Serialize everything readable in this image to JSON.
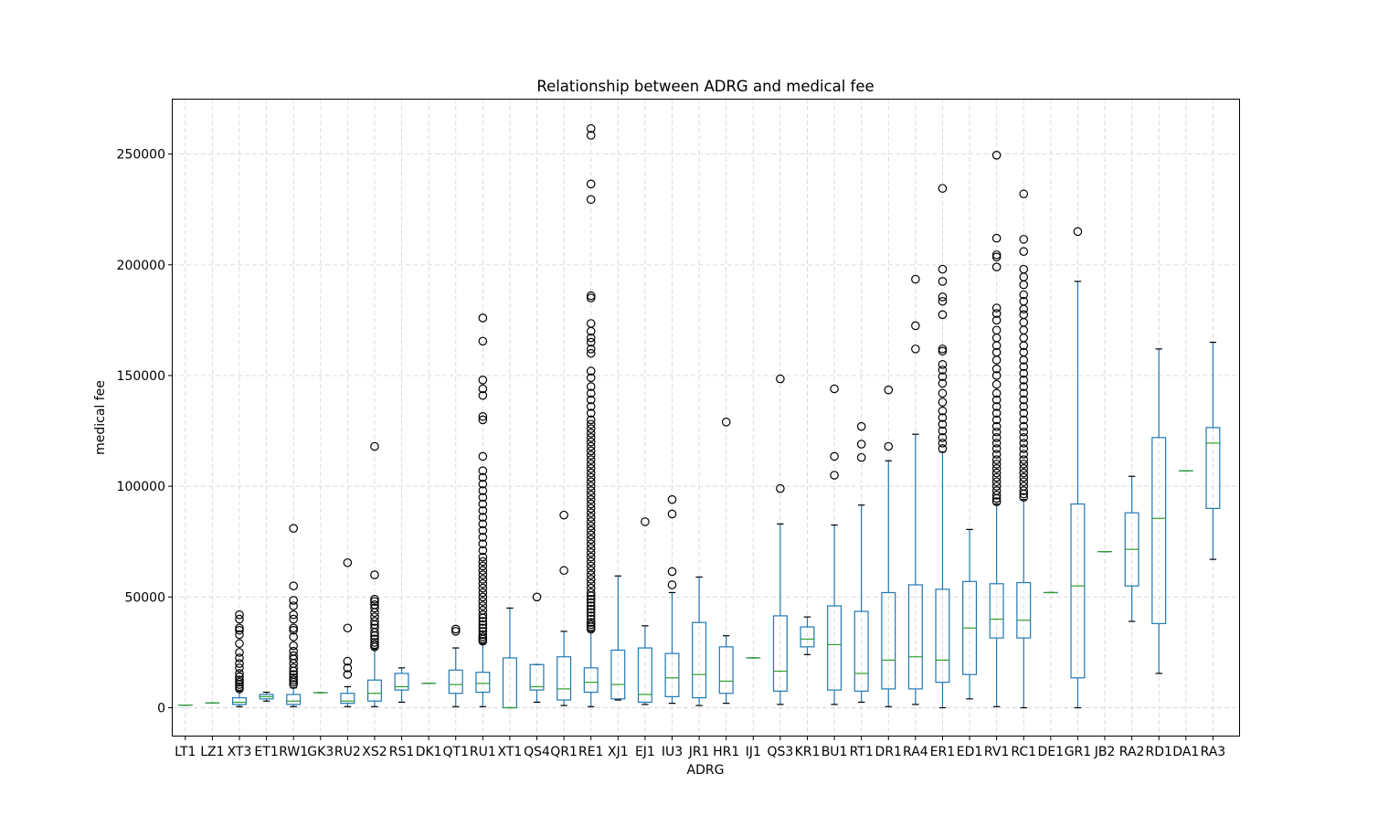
{
  "chart_data": {
    "type": "boxplot",
    "title": "Relationship between ADRG and medical fee",
    "xlabel": "ADRG",
    "ylabel": "medical fee",
    "ylim": [
      -13000,
      275000
    ],
    "yticks": [
      0,
      50000,
      100000,
      150000,
      200000,
      250000
    ],
    "grid": true,
    "colors": {
      "box": "#1f77b4",
      "median": "#2ca02c",
      "whisker_cap": "#000000",
      "flier": "#000000",
      "grid": "#d9d9d9"
    },
    "categories": [
      "LT1",
      "LZ1",
      "XT3",
      "ET1",
      "RW1",
      "GK3",
      "RU2",
      "XS2",
      "RS1",
      "DK1",
      "QT1",
      "RU1",
      "XT1",
      "QS4",
      "QR1",
      "RE1",
      "XJ1",
      "EJ1",
      "IU3",
      "JR1",
      "HR1",
      "IJ1",
      "QS3",
      "KR1",
      "BU1",
      "RT1",
      "DR1",
      "RA4",
      "ER1",
      "ED1",
      "RV1",
      "RC1",
      "DE1",
      "GR1",
      "JB2",
      "RA2",
      "RD1",
      "DA1",
      "RA3"
    ],
    "boxes": [
      {
        "label": "LT1",
        "whislo": 1200,
        "q1": 1200,
        "med": 1200,
        "q3": 1200,
        "whishi": 1200,
        "fliers": []
      },
      {
        "label": "LZ1",
        "whislo": 2200,
        "q1": 2200,
        "med": 2200,
        "q3": 2200,
        "whishi": 2200,
        "fliers": []
      },
      {
        "label": "XT3",
        "whislo": 500,
        "q1": 1500,
        "med": 2500,
        "q3": 4500,
        "whishi": 7500,
        "fliers": [
          8500,
          9500,
          10500,
          11500,
          12500,
          14000,
          15500,
          18000,
          20000,
          22500,
          25000,
          29000,
          33000,
          35000,
          36000,
          40000,
          42000
        ]
      },
      {
        "label": "ET1",
        "whislo": 3000,
        "q1": 4000,
        "med": 5000,
        "q3": 6000,
        "whishi": 7000,
        "fliers": []
      },
      {
        "label": "RW1",
        "whislo": 500,
        "q1": 1500,
        "med": 3000,
        "q3": 6000,
        "whishi": 9000,
        "fliers": [
          10500,
          11500,
          12500,
          13500,
          15000,
          16500,
          18000,
          20000,
          22000,
          23500,
          25500,
          28000,
          32000,
          35000,
          36000,
          40000,
          42000,
          46000,
          48500,
          55000,
          81000
        ]
      },
      {
        "label": "GK3",
        "whislo": 6800,
        "q1": 6800,
        "med": 6800,
        "q3": 6800,
        "whishi": 6800,
        "fliers": []
      },
      {
        "label": "RU2",
        "whislo": 500,
        "q1": 2000,
        "med": 3000,
        "q3": 6500,
        "whishi": 9500,
        "fliers": [
          15000,
          18000,
          21000,
          36000,
          65500
        ]
      },
      {
        "label": "XS2",
        "whislo": 500,
        "q1": 3000,
        "med": 6500,
        "q3": 12500,
        "whishi": 26500,
        "fliers": [
          27500,
          28500,
          29500,
          31000,
          32500,
          34000,
          36000,
          37500,
          39000,
          41000,
          43000,
          45000,
          46500,
          48000,
          49000,
          60000,
          118000
        ]
      },
      {
        "label": "RS1",
        "whislo": 2500,
        "q1": 8000,
        "med": 9500,
        "q3": 15500,
        "whishi": 18000,
        "fliers": []
      },
      {
        "label": "DK1",
        "whislo": 11000,
        "q1": 11000,
        "med": 11000,
        "q3": 11000,
        "whishi": 11000,
        "fliers": []
      },
      {
        "label": "QT1",
        "whislo": 500,
        "q1": 6500,
        "med": 10500,
        "q3": 17000,
        "whishi": 27000,
        "fliers": [
          34500,
          35500
        ]
      },
      {
        "label": "RU1",
        "whislo": 500,
        "q1": 7000,
        "med": 11000,
        "q3": 16000,
        "whishi": 29000,
        "fliers": [
          30000,
          31000,
          32000,
          33000,
          34500,
          36000,
          37500,
          39000,
          40500,
          42000,
          44000,
          46000,
          48000,
          50000,
          52000,
          54000,
          56000,
          58000,
          60000,
          62000,
          64000,
          66000,
          68000,
          71000,
          74000,
          77000,
          80000,
          83000,
          86000,
          89000,
          92000,
          95000,
          98000,
          101000,
          104000,
          107000,
          113500,
          130000,
          131500,
          141000,
          144000,
          148000,
          165500,
          176000
        ]
      },
      {
        "label": "XT1",
        "whislo": 0,
        "q1": 0,
        "med": 0,
        "q3": 22500,
        "whishi": 45000,
        "fliers": []
      },
      {
        "label": "QS4",
        "whislo": 2500,
        "q1": 8000,
        "med": 9500,
        "q3": 19500,
        "whishi": 19500,
        "fliers": [
          50000
        ]
      },
      {
        "label": "QR1",
        "whislo": 1000,
        "q1": 3500,
        "med": 8500,
        "q3": 23000,
        "whishi": 34500,
        "fliers": [
          62000,
          87000
        ]
      },
      {
        "label": "RE1",
        "whislo": 500,
        "q1": 7000,
        "med": 11500,
        "q3": 18000,
        "whishi": 34500,
        "fliers": [
          35500,
          36500,
          37500,
          38500,
          40000,
          41500,
          43000,
          44500,
          46000,
          47500,
          49000,
          50500,
          52000,
          54000,
          56000,
          58000,
          60000,
          62000,
          64000,
          66000,
          68000,
          70000,
          72000,
          74000,
          76000,
          78000,
          80000,
          82000,
          84000,
          86000,
          88000,
          90000,
          92000,
          94000,
          96000,
          98000,
          100000,
          102000,
          104000,
          106000,
          108000,
          110000,
          112000,
          114000,
          116000,
          118000,
          120000,
          122000,
          124000,
          126000,
          128000,
          130000,
          133000,
          136000,
          139000,
          142000,
          145000,
          149000,
          152000,
          160000,
          162000,
          165000,
          167000,
          170000,
          173500,
          185000,
          186000,
          229500,
          236500,
          258500,
          261500
        ]
      },
      {
        "label": "XJ1",
        "whislo": 3500,
        "q1": 4000,
        "med": 10500,
        "q3": 26000,
        "whishi": 59500,
        "fliers": []
      },
      {
        "label": "EJ1",
        "whislo": 1500,
        "q1": 2500,
        "med": 6000,
        "q3": 27000,
        "whishi": 37000,
        "fliers": [
          84000
        ]
      },
      {
        "label": "IU3",
        "whislo": 2000,
        "q1": 5000,
        "med": 13500,
        "q3": 24500,
        "whishi": 52000,
        "fliers": [
          55500,
          61500,
          87500,
          94000
        ]
      },
      {
        "label": "JR1",
        "whislo": 1000,
        "q1": 4500,
        "med": 15000,
        "q3": 38500,
        "whishi": 59000,
        "fliers": []
      },
      {
        "label": "HR1",
        "whislo": 2000,
        "q1": 6500,
        "med": 12000,
        "q3": 27500,
        "whishi": 32500,
        "fliers": [
          129000
        ]
      },
      {
        "label": "IJ1",
        "whislo": 22500,
        "q1": 22500,
        "med": 22500,
        "q3": 22500,
        "whishi": 22500,
        "fliers": []
      },
      {
        "label": "QS3",
        "whislo": 1500,
        "q1": 7500,
        "med": 16500,
        "q3": 41500,
        "whishi": 83000,
        "fliers": [
          99000,
          148500
        ]
      },
      {
        "label": "KR1",
        "whislo": 24000,
        "q1": 27500,
        "med": 31000,
        "q3": 36500,
        "whishi": 41000,
        "fliers": []
      },
      {
        "label": "BU1",
        "whislo": 1500,
        "q1": 8000,
        "med": 28500,
        "q3": 46000,
        "whishi": 82500,
        "fliers": [
          105000,
          113500,
          144000
        ]
      },
      {
        "label": "RT1",
        "whislo": 2500,
        "q1": 7500,
        "med": 15500,
        "q3": 43500,
        "whishi": 91500,
        "fliers": [
          113000,
          119000,
          127000
        ]
      },
      {
        "label": "DR1",
        "whislo": 500,
        "q1": 8500,
        "med": 21500,
        "q3": 52000,
        "whishi": 111500,
        "fliers": [
          118000,
          143500
        ]
      },
      {
        "label": "RA4",
        "whislo": 1500,
        "q1": 8500,
        "med": 23000,
        "q3": 55500,
        "whishi": 123500,
        "fliers": [
          162000,
          172500,
          193500
        ]
      },
      {
        "label": "ER1",
        "whislo": 0,
        "q1": 11500,
        "med": 21500,
        "q3": 53500,
        "whishi": 115500,
        "fliers": [
          117000,
          119500,
          122000,
          125000,
          128000,
          131000,
          134000,
          138000,
          142000,
          146500,
          149500,
          152500,
          155000,
          161000,
          162000,
          177500,
          183500,
          185500,
          192500,
          198000,
          234500
        ]
      },
      {
        "label": "ED1",
        "whislo": 4000,
        "q1": 15000,
        "med": 36000,
        "q3": 57000,
        "whishi": 80500,
        "fliers": []
      },
      {
        "label": "RV1",
        "whislo": 500,
        "q1": 31500,
        "med": 40000,
        "q3": 56000,
        "whishi": 92000,
        "fliers": [
          93000,
          94500,
          96000,
          98000,
          100000,
          102000,
          104000,
          106000,
          108000,
          110000,
          112000,
          114500,
          117000,
          119500,
          122000,
          124500,
          127000,
          130000,
          133000,
          136000,
          139000,
          142000,
          146000,
          150000,
          153000,
          157000,
          160500,
          163500,
          167000,
          170500,
          175000,
          178000,
          180500,
          199000,
          203500,
          204500,
          212000,
          249500
        ]
      },
      {
        "label": "RC1",
        "whislo": 0,
        "q1": 31500,
        "med": 39500,
        "q3": 56500,
        "whishi": 94000,
        "fliers": [
          95000,
          96500,
          98000,
          100000,
          102000,
          104000,
          106000,
          108000,
          110000,
          112000,
          114500,
          117000,
          119500,
          122000,
          124500,
          127000,
          130000,
          133000,
          136000,
          139000,
          142000,
          145000,
          148000,
          151000,
          154000,
          157000,
          160500,
          163500,
          167000,
          170500,
          174000,
          177500,
          180000,
          183500,
          186500,
          191000,
          194500,
          198000,
          206000,
          211500,
          232000
        ]
      },
      {
        "label": "DE1",
        "whislo": 52000,
        "q1": 52000,
        "med": 52000,
        "q3": 52000,
        "whishi": 52000,
        "fliers": []
      },
      {
        "label": "GR1",
        "whislo": 0,
        "q1": 13500,
        "med": 55000,
        "q3": 92000,
        "whishi": 192500,
        "fliers": [
          215000
        ]
      },
      {
        "label": "JB2",
        "whislo": 70500,
        "q1": 70500,
        "med": 70500,
        "q3": 70500,
        "whishi": 70500,
        "fliers": []
      },
      {
        "label": "RA2",
        "whislo": 39000,
        "q1": 55000,
        "med": 71500,
        "q3": 88000,
        "whishi": 104500,
        "fliers": []
      },
      {
        "label": "RD1",
        "whislo": 15500,
        "q1": 38000,
        "med": 85500,
        "q3": 122000,
        "whishi": 162000,
        "fliers": []
      },
      {
        "label": "DA1",
        "whislo": 107000,
        "q1": 107000,
        "med": 107000,
        "q3": 107000,
        "whishi": 107000,
        "fliers": []
      },
      {
        "label": "RA3",
        "whislo": 67000,
        "q1": 90000,
        "med": 119500,
        "q3": 126500,
        "whishi": 165000,
        "fliers": []
      }
    ]
  }
}
